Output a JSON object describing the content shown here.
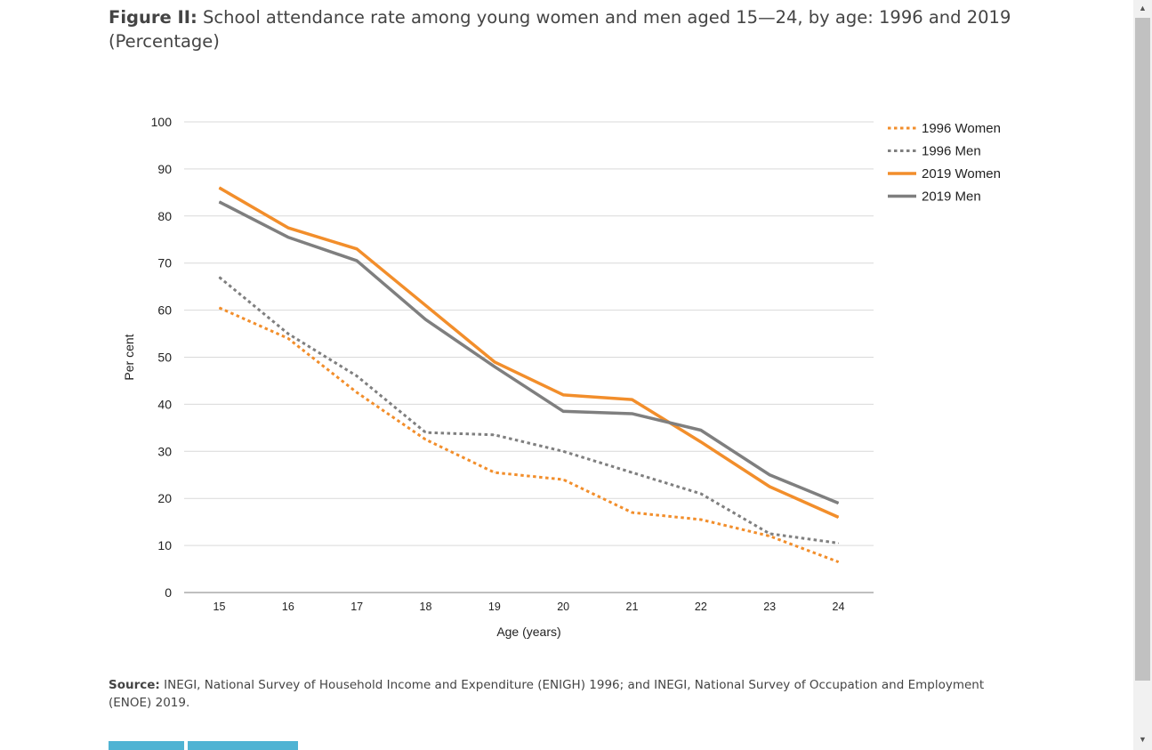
{
  "figure": {
    "title_lead": "Figure II:",
    "title_text": " School attendance rate among young women and men aged 15—24, by age: 1996 and 2019 (Percentage)"
  },
  "source": {
    "lead": "Source:",
    "text": " INEGI, National Survey of Household Income and Expenditure (ENIGH) 1996; and INEGI, National Survey of Occupation and Employment (ENOE) 2019."
  },
  "scrollbar": {
    "up_icon": "triangle-up",
    "down_icon": "triangle-down"
  },
  "chart_data": {
    "type": "line",
    "xlabel": "Age (years)",
    "ylabel": "Per cent",
    "ylim": [
      0,
      100
    ],
    "yticks": [
      0,
      10,
      20,
      30,
      40,
      50,
      60,
      70,
      80,
      90,
      100
    ],
    "categories": [
      "15",
      "16",
      "17",
      "18",
      "19",
      "20",
      "21",
      "22",
      "23",
      "24"
    ],
    "grid": true,
    "legend_position": "right",
    "series": [
      {
        "name": "1996 Women",
        "color": "#f28e2b",
        "style": "dotted",
        "values": [
          60.5,
          54,
          42.5,
          32.5,
          25.5,
          24,
          17,
          15.5,
          12,
          6.5
        ]
      },
      {
        "name": "1996 Men",
        "color": "#7f7f7f",
        "style": "dotted",
        "values": [
          67,
          55,
          46,
          34,
          33.5,
          30,
          25.5,
          21,
          12.5,
          10.5
        ]
      },
      {
        "name": "2019 Women",
        "color": "#f28e2b",
        "style": "solid",
        "values": [
          86,
          77.5,
          73,
          61,
          49,
          42,
          41,
          32,
          22.5,
          16
        ]
      },
      {
        "name": "2019 Men",
        "color": "#7f7f7f",
        "style": "solid",
        "values": [
          83,
          75.5,
          70.5,
          58,
          48,
          38.5,
          38,
          34.5,
          25,
          19
        ]
      }
    ]
  }
}
